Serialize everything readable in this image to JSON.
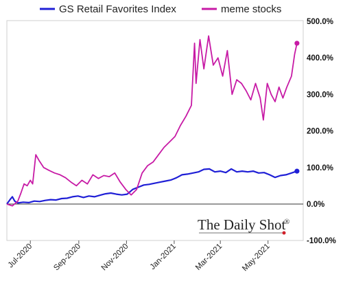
{
  "chart_data": {
    "type": "line",
    "x_label_ticks": [
      "Jul-2020",
      "Sep-2020",
      "Nov-2020",
      "Jan-2021",
      "Mar-2021",
      "May-2021"
    ],
    "x_tick_dates": [
      "2020-07-01",
      "2020-09-01",
      "2020-11-01",
      "2021-01-01",
      "2021-03-01",
      "2021-05-01"
    ],
    "x_range": [
      "2020-06-01",
      "2021-06-15"
    ],
    "y_ticks": [
      -100,
      0,
      100,
      200,
      300,
      400,
      500
    ],
    "y_tick_labels": [
      "-100.0%",
      "0.0%",
      "100.0%",
      "200.0%",
      "300.0%",
      "400.0%",
      "500.0%"
    ],
    "ylim": [
      -100,
      500
    ],
    "y_axis_side": "right",
    "legend_position": "top",
    "grid": false,
    "series": [
      {
        "name": "GS Retail Favorites Index",
        "color": "#1f1fd6",
        "marker_at_end": true,
        "points": [
          [
            "2020-06-01",
            0
          ],
          [
            "2020-06-05",
            12
          ],
          [
            "2020-06-08",
            20
          ],
          [
            "2020-06-11",
            8
          ],
          [
            "2020-06-15",
            3
          ],
          [
            "2020-06-22",
            5
          ],
          [
            "2020-06-29",
            4
          ],
          [
            "2020-07-06",
            8
          ],
          [
            "2020-07-13",
            7
          ],
          [
            "2020-07-20",
            10
          ],
          [
            "2020-07-27",
            12
          ],
          [
            "2020-08-03",
            11
          ],
          [
            "2020-08-10",
            15
          ],
          [
            "2020-08-17",
            16
          ],
          [
            "2020-08-24",
            20
          ],
          [
            "2020-08-31",
            22
          ],
          [
            "2020-09-07",
            18
          ],
          [
            "2020-09-14",
            22
          ],
          [
            "2020-09-21",
            20
          ],
          [
            "2020-09-28",
            24
          ],
          [
            "2020-10-05",
            28
          ],
          [
            "2020-10-12",
            30
          ],
          [
            "2020-10-19",
            27
          ],
          [
            "2020-10-26",
            25
          ],
          [
            "2020-11-02",
            27
          ],
          [
            "2020-11-09",
            40
          ],
          [
            "2020-11-16",
            46
          ],
          [
            "2020-11-23",
            52
          ],
          [
            "2020-11-30",
            54
          ],
          [
            "2020-12-07",
            57
          ],
          [
            "2020-12-14",
            60
          ],
          [
            "2020-12-21",
            63
          ],
          [
            "2020-12-28",
            66
          ],
          [
            "2021-01-04",
            72
          ],
          [
            "2021-01-11",
            80
          ],
          [
            "2021-01-18",
            82
          ],
          [
            "2021-01-25",
            85
          ],
          [
            "2021-02-01",
            88
          ],
          [
            "2021-02-08",
            95
          ],
          [
            "2021-02-15",
            96
          ],
          [
            "2021-02-22",
            88
          ],
          [
            "2021-03-01",
            90
          ],
          [
            "2021-03-08",
            86
          ],
          [
            "2021-03-15",
            96
          ],
          [
            "2021-03-22",
            88
          ],
          [
            "2021-03-29",
            90
          ],
          [
            "2021-04-05",
            88
          ],
          [
            "2021-04-12",
            90
          ],
          [
            "2021-04-19",
            85
          ],
          [
            "2021-04-26",
            86
          ],
          [
            "2021-05-03",
            80
          ],
          [
            "2021-05-10",
            73
          ],
          [
            "2021-05-17",
            78
          ],
          [
            "2021-05-24",
            80
          ],
          [
            "2021-05-31",
            85
          ],
          [
            "2021-06-07",
            90
          ]
        ]
      },
      {
        "name": "meme stocks",
        "color": "#c71aa5",
        "marker_at_end": true,
        "points": [
          [
            "2020-06-01",
            0
          ],
          [
            "2020-06-08",
            -5
          ],
          [
            "2020-06-15",
            8
          ],
          [
            "2020-06-19",
            30
          ],
          [
            "2020-06-23",
            55
          ],
          [
            "2020-06-27",
            50
          ],
          [
            "2020-07-01",
            65
          ],
          [
            "2020-07-04",
            55
          ],
          [
            "2020-07-08",
            135
          ],
          [
            "2020-07-12",
            120
          ],
          [
            "2020-07-18",
            100
          ],
          [
            "2020-07-25",
            92
          ],
          [
            "2020-08-01",
            85
          ],
          [
            "2020-08-08",
            80
          ],
          [
            "2020-08-15",
            72
          ],
          [
            "2020-08-22",
            60
          ],
          [
            "2020-08-29",
            50
          ],
          [
            "2020-09-05",
            65
          ],
          [
            "2020-09-12",
            55
          ],
          [
            "2020-09-19",
            80
          ],
          [
            "2020-09-26",
            70
          ],
          [
            "2020-10-03",
            78
          ],
          [
            "2020-10-10",
            75
          ],
          [
            "2020-10-17",
            85
          ],
          [
            "2020-10-24",
            60
          ],
          [
            "2020-10-31",
            40
          ],
          [
            "2020-11-07",
            25
          ],
          [
            "2020-11-14",
            40
          ],
          [
            "2020-11-21",
            85
          ],
          [
            "2020-11-28",
            105
          ],
          [
            "2020-12-05",
            115
          ],
          [
            "2020-12-12",
            135
          ],
          [
            "2020-12-19",
            155
          ],
          [
            "2020-12-26",
            170
          ],
          [
            "2021-01-02",
            185
          ],
          [
            "2021-01-09",
            215
          ],
          [
            "2021-01-16",
            240
          ],
          [
            "2021-01-23",
            270
          ],
          [
            "2021-01-27",
            440
          ],
          [
            "2021-01-29",
            330
          ],
          [
            "2021-02-03",
            450
          ],
          [
            "2021-02-08",
            370
          ],
          [
            "2021-02-14",
            460
          ],
          [
            "2021-02-20",
            380
          ],
          [
            "2021-02-26",
            400
          ],
          [
            "2021-03-04",
            350
          ],
          [
            "2021-03-10",
            420
          ],
          [
            "2021-03-16",
            300
          ],
          [
            "2021-03-22",
            340
          ],
          [
            "2021-03-28",
            330
          ],
          [
            "2021-04-03",
            310
          ],
          [
            "2021-04-09",
            285
          ],
          [
            "2021-04-15",
            330
          ],
          [
            "2021-04-21",
            290
          ],
          [
            "2021-04-25",
            230
          ],
          [
            "2021-04-30",
            330
          ],
          [
            "2021-05-05",
            300
          ],
          [
            "2021-05-10",
            280
          ],
          [
            "2021-05-15",
            320
          ],
          [
            "2021-05-20",
            290
          ],
          [
            "2021-05-25",
            320
          ],
          [
            "2021-05-31",
            350
          ],
          [
            "2021-06-04",
            410
          ],
          [
            "2021-06-07",
            440
          ]
        ]
      }
    ],
    "brand": {
      "text": "The Daily Shot",
      "mark": "®"
    }
  }
}
